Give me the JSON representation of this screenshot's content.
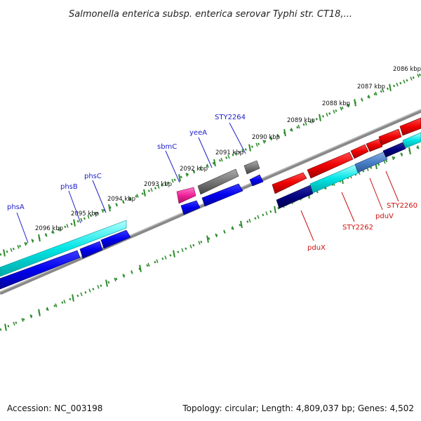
{
  "title": "Salmonella enterica subsp. enterica serovar Typhi str. CT18,...",
  "footer": {
    "accession": "Accession: NC_003198",
    "summary": "Topology: circular; Length: 4,809,037 bp; Genes: 4,502"
  },
  "ticks": [
    {
      "label": "2086 kbp",
      "pos": 2086
    },
    {
      "label": "2087 kbp",
      "pos": 2087
    },
    {
      "label": "2088 kbp",
      "pos": 2088
    },
    {
      "label": "2089 kbp",
      "pos": 2089
    },
    {
      "label": "2090 kbp",
      "pos": 2090
    },
    {
      "label": "2091 kbp",
      "pos": 2091
    },
    {
      "label": "2092 kbp",
      "pos": 2092
    },
    {
      "label": "2093 kbp",
      "pos": 2093
    },
    {
      "label": "2094 kbp",
      "pos": 2094
    },
    {
      "label": "2095 kbp",
      "pos": 2095
    },
    {
      "label": "2096 kbp",
      "pos": 2096
    }
  ],
  "gene_labels": [
    {
      "name": "phsA",
      "color": "#2020cc"
    },
    {
      "name": "phsB",
      "color": "#2020cc"
    },
    {
      "name": "phsC",
      "color": "#2020cc"
    },
    {
      "name": "sbmC",
      "color": "#2020cc"
    },
    {
      "name": "yeeA",
      "color": "#2020cc"
    },
    {
      "name": "STY2264",
      "color": "#2020cc"
    },
    {
      "name": "pduX",
      "color": "#cc1111"
    },
    {
      "name": "STY2262",
      "color": "#cc1111"
    },
    {
      "name": "pduV",
      "color": "#cc1111"
    },
    {
      "name": "STY2260",
      "color": "#cc1111"
    }
  ],
  "colors": {
    "backbone": "#888888",
    "tick_dots": "#2a8a2a",
    "forward_gene": "#0000ee",
    "reverse_gene": "#ee0000",
    "cds_cyan": "#00e5e5",
    "cds_navy": "#000080",
    "pseudo_gray": "#777777",
    "misc_pink": "#ee2299"
  }
}
